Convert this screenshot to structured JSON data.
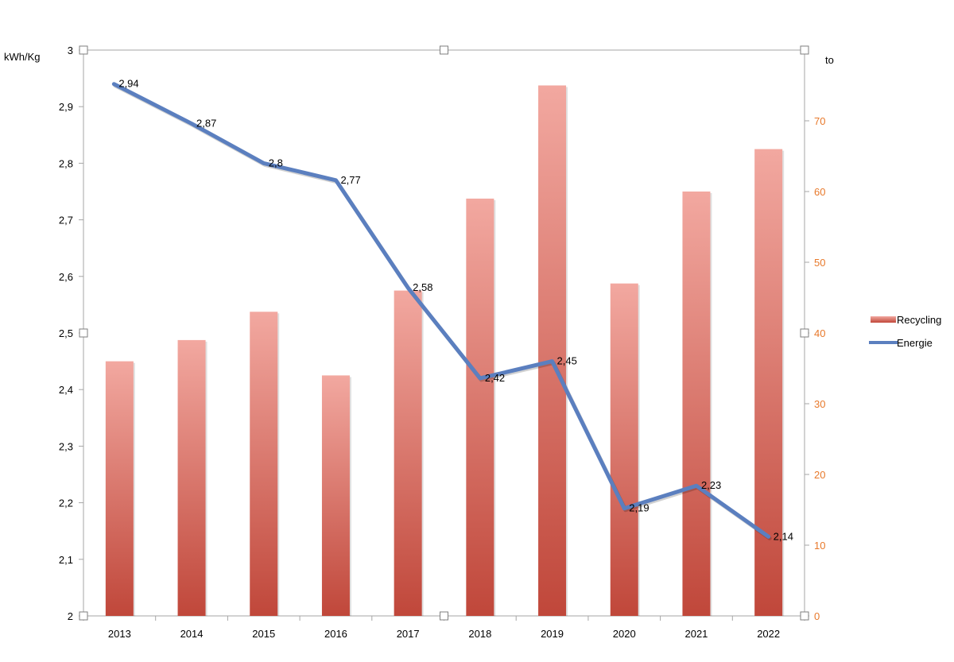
{
  "chart_data": {
    "type": "bar",
    "categories": [
      "2013",
      "2014",
      "2015",
      "2016",
      "2017",
      "2018",
      "2019",
      "2020",
      "2021",
      "2022"
    ],
    "series": [
      {
        "name": "Recycling",
        "type": "bar",
        "axis": "right",
        "values": [
          36,
          39,
          43,
          34,
          46,
          59,
          75,
          47,
          60,
          66
        ]
      },
      {
        "name": "Energie",
        "type": "line",
        "axis": "left",
        "values": [
          2.94,
          2.87,
          2.8,
          2.77,
          2.58,
          2.42,
          2.45,
          2.19,
          2.23,
          2.14
        ],
        "data_labels": [
          "2,94",
          "2,87",
          "2,8",
          "2,77",
          "2,58",
          "2,42",
          "2,45",
          "2,19",
          "2,23",
          "2,14"
        ]
      }
    ],
    "y_left": {
      "label": "kWh/Kg",
      "ylim": [
        2,
        3
      ],
      "ticks": [
        2,
        2.1,
        2.2,
        2.3,
        2.4,
        2.5,
        2.6,
        2.7,
        2.8,
        2.9,
        3
      ],
      "tick_labels": [
        "2",
        "2,1",
        "2,2",
        "2,3",
        "2,4",
        "2,5",
        "2,6",
        "2,7",
        "2,8",
        "2,9",
        "3"
      ]
    },
    "y_right": {
      "label": "to",
      "ylim": [
        0,
        80
      ],
      "ticks": [
        0,
        10,
        20,
        30,
        40,
        50,
        60,
        70
      ],
      "tick_labels": [
        "0",
        "10",
        "20",
        "30",
        "40",
        "50",
        "60",
        "70"
      ]
    },
    "legend": {
      "position": "right",
      "entries": [
        "Recycling",
        "Energie"
      ]
    },
    "grid": false,
    "colors": {
      "bar_top": "#f2a8a0",
      "bar_bottom": "#c0473a",
      "line": "#5b7fbf",
      "right_axis_text": "#e8792b",
      "axis": "#a6a6a6"
    }
  }
}
